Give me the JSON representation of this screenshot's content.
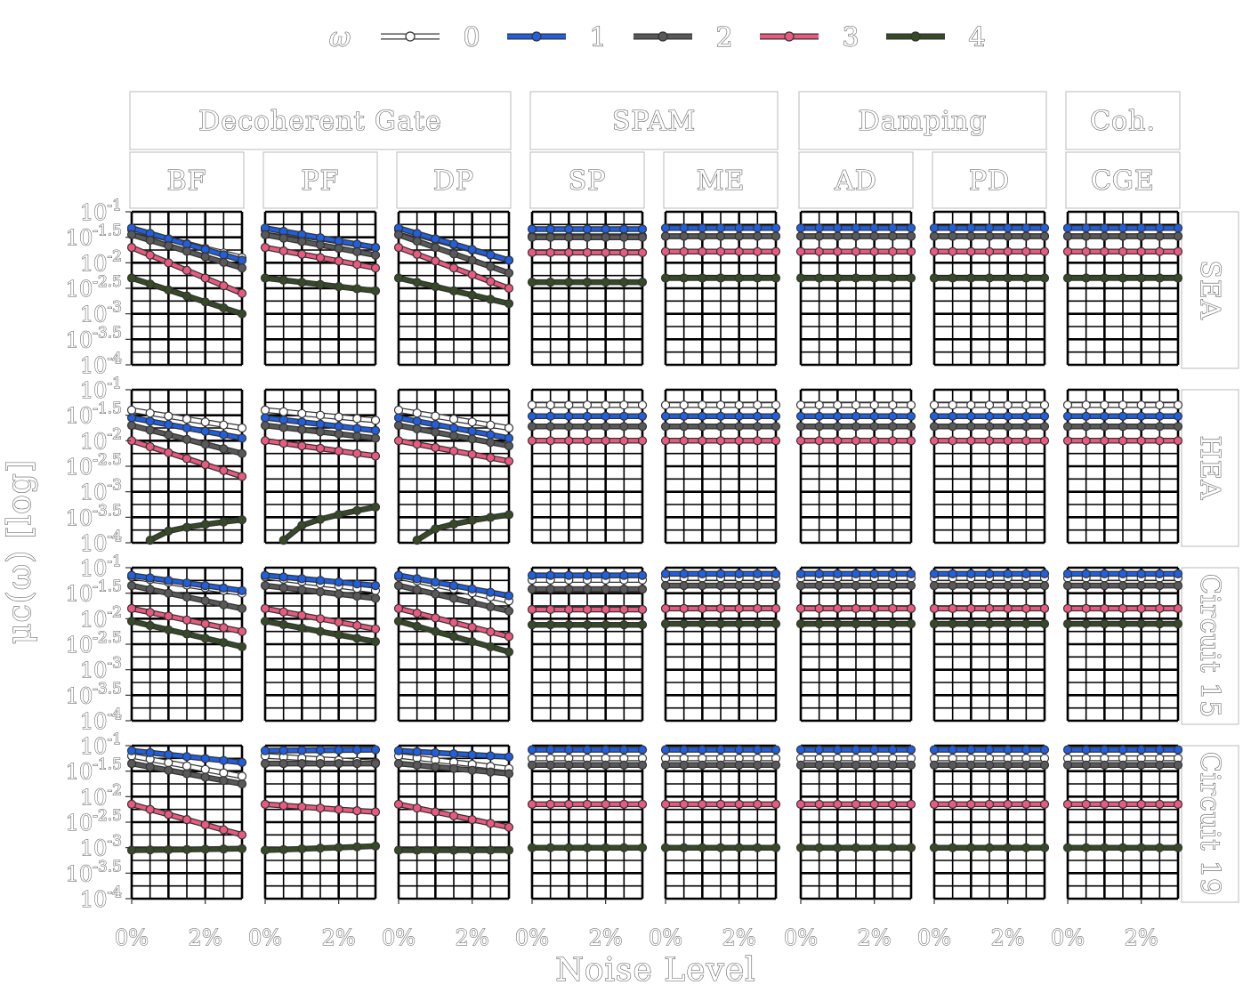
{
  "chart_data": {
    "type": "line",
    "ylabel": "μ_c(ω) [log]",
    "xlabel": "Noise Level",
    "legend": {
      "title": "ω",
      "placement": "top",
      "entries": [
        {
          "key": "0",
          "color": "#ffffff"
        },
        {
          "key": "1",
          "color": "#1f5fe0"
        },
        {
          "key": "2",
          "color": "#595959"
        },
        {
          "key": "3",
          "color": "#ea5a80"
        },
        {
          "key": "4",
          "color": "#364a26"
        }
      ]
    },
    "x_tick_labels": [
      "0%",
      "2%"
    ],
    "x_ticks": [
      0,
      2
    ],
    "xlim": [
      0,
      3
    ],
    "y_scale": "log10",
    "ylim": [
      -4,
      -1
    ],
    "y_tick_labels": [
      "10^-1",
      "10^-1.5",
      "10^-2",
      "10^-2.5",
      "10^-3",
      "10^-3.5",
      "10^-4"
    ],
    "noise_levels": [
      0,
      0.5,
      1,
      1.5,
      2,
      2.5,
      3
    ],
    "groups": [
      {
        "label": "Decoherent Gate",
        "columns": [
          "BF",
          "PF",
          "DP"
        ]
      },
      {
        "label": "SPAM",
        "columns": [
          "SP",
          "ME"
        ]
      },
      {
        "label": "Damping",
        "columns": [
          "AD",
          "PD"
        ]
      },
      {
        "label": "Coh.",
        "columns": [
          "CGE"
        ]
      }
    ],
    "columns": [
      "BF",
      "PF",
      "DP",
      "SP",
      "ME",
      "AD",
      "PD",
      "CGE"
    ],
    "rows": [
      "SEA",
      "HEA",
      "Circuit 15",
      "Circuit 19"
    ],
    "profiles": {
      "SEA": {
        "dec": {
          "start": [
            -1.35,
            -1.32,
            -1.45,
            -1.7,
            -2.3
          ],
          "end": {
            "BF": [
              -1.9,
              -1.95,
              -2.1,
              -2.6,
              -3.0
            ],
            "PF": [
              -1.7,
              -1.7,
              -1.85,
              -2.1,
              -2.55
            ],
            "DP": [
              -1.95,
              -1.95,
              -2.2,
              -2.5,
              -2.8
            ]
          }
        },
        "flat": {
          "default": [
            -1.48,
            -1.32,
            -1.48,
            -1.78,
            -2.3
          ],
          "SP": [
            -1.48,
            -1.34,
            -1.5,
            -1.8,
            -2.38
          ]
        }
      },
      "HEA": {
        "dec": {
          "start": [
            -1.4,
            -1.55,
            -1.7,
            -2.0,
            -3.95
          ],
          "end": {
            "BF": [
              -1.75,
              -1.95,
              -2.25,
              -2.7,
              -3.55
            ],
            "PF": [
              -1.6,
              -1.8,
              -1.95,
              -2.3,
              -3.3
            ],
            "DP": [
              -1.75,
              -1.95,
              -2.1,
              -2.4,
              -3.45
            ]
          }
        },
        "flat": {
          "default": [
            -1.3,
            -1.52,
            -1.72,
            -2.0,
            null
          ]
        }
      },
      "Circuit 15": {
        "dec": {
          "start": [
            -1.18,
            -1.15,
            -1.35,
            -1.8,
            -2.05
          ],
          "end": {
            "BF": [
              -1.5,
              -1.45,
              -1.8,
              -2.25,
              -2.55
            ],
            "PF": [
              -1.45,
              -1.35,
              -1.6,
              -2.2,
              -2.45
            ],
            "DP": [
              -1.65,
              -1.55,
              -1.85,
              -2.35,
              -2.65
            ]
          }
        },
        "flat": {
          "default": [
            -1.2,
            -1.12,
            -1.35,
            -1.8,
            -2.1
          ],
          "SP": [
            -1.24,
            -1.15,
            -1.42,
            -1.82,
            -2.12
          ]
        }
      },
      "Circuit 19": {
        "dec": {
          "start": [
            -1.2,
            -1.1,
            -1.35,
            -2.15,
            -3.05
          ],
          "end": {
            "BF": [
              -1.6,
              -1.33,
              -1.75,
              -2.75,
              -3.02
            ],
            "PF": [
              -1.33,
              -1.08,
              -1.35,
              -2.3,
              -2.97
            ],
            "DP": [
              -1.45,
              -1.22,
              -1.55,
              -2.6,
              -3.05
            ]
          }
        },
        "flat": {
          "default": [
            -1.25,
            -1.08,
            -1.38,
            -2.15,
            -3.0
          ]
        }
      }
    }
  },
  "labels": {
    "legend_title": "ω",
    "legend_keys": [
      "0",
      "1",
      "2",
      "3",
      "4"
    ],
    "group_labels": [
      "Decoherent Gate",
      "SPAM",
      "Damping",
      "Coh."
    ],
    "column_labels": [
      "BF",
      "PF",
      "DP",
      "SP",
      "ME",
      "AD",
      "PD",
      "CGE"
    ],
    "row_labels": [
      "SEA",
      "HEA",
      "Circuit 15",
      "Circuit 19"
    ],
    "x_axis_title": "Noise Level",
    "y_axis_title": "μc(ω) [log]"
  }
}
